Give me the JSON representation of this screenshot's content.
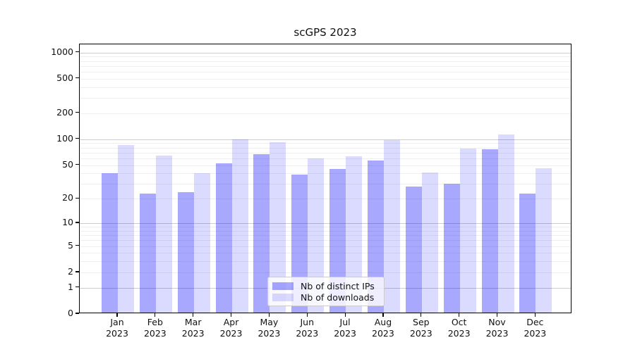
{
  "chart_data": {
    "type": "bar",
    "title": "scGPS 2023",
    "categories": [
      "Jan",
      "Feb",
      "Mar",
      "Apr",
      "May",
      "Jun",
      "Jul",
      "Aug",
      "Sep",
      "Oct",
      "Nov",
      "Dec"
    ],
    "x_tick_second_line": "2023",
    "series": [
      {
        "name": "Nb of distinct IPs",
        "color": "rgba(0,0,255,0.34)",
        "values": [
          40,
          23,
          24,
          53,
          67,
          39,
          45,
          57,
          28,
          30,
          76,
          23
        ]
      },
      {
        "name": "Nb of downloads",
        "color": "rgba(0,0,255,0.14)",
        "values": [
          86,
          65,
          40,
          100,
          92,
          60,
          64,
          98,
          41,
          78,
          113,
          46
        ]
      }
    ],
    "yscale": "log1p",
    "yticks": [
      0,
      1,
      2,
      5,
      10,
      20,
      50,
      100,
      200,
      500,
      1000
    ],
    "ylim": [
      0,
      1260
    ],
    "grid": "horizontal; faint minor lines at 2-9 per decade, darker lines at 1, 10, 100, 1000",
    "legend_position": "lower center"
  },
  "colors": {
    "background": "#ffffff",
    "axis": "#000000",
    "grid_major": "#cccccc",
    "grid_minor": "#efefef",
    "text": "#111111",
    "legend_border": "#cccccc",
    "legend_background": "rgba(255,255,255,0.8)"
  }
}
